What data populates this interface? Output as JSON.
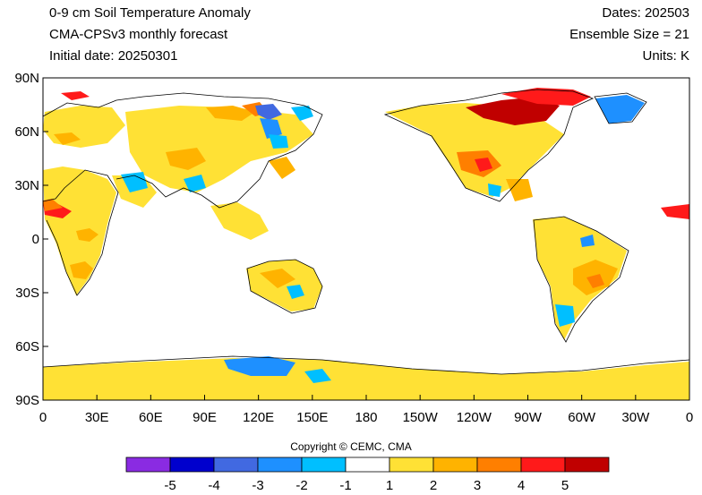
{
  "header": {
    "title": "0-9 cm Soil Temperature Anomaly",
    "model": "CMA-CPSv3 monthly forecast",
    "initial_date": "Initial date: 20250301",
    "dates": "Dates: 202503",
    "ensemble": "Ensemble Size = 21",
    "units": "Units: K"
  },
  "lat_labels": [
    "90N",
    "60N",
    "30N",
    "0",
    "30S",
    "60S",
    "90S"
  ],
  "lon_labels": [
    "0",
    "30E",
    "60E",
    "90E",
    "120E",
    "150E",
    "180",
    "150W",
    "120W",
    "90W",
    "60W",
    "30W",
    "0"
  ],
  "copyright": "Copyright © CEMC, CMA",
  "colorbar": {
    "colors": [
      "#8a2be2",
      "#0000cd",
      "#4169e1",
      "#1e90ff",
      "#00bfff",
      "#ffffff",
      "#ffe135",
      "#ffb300",
      "#ff7f00",
      "#ff1a1a",
      "#c00000"
    ],
    "tick_labels": [
      "-5",
      "-4",
      "-3",
      "-2",
      "-1",
      "1",
      "2",
      "3",
      "4",
      "5"
    ]
  }
}
